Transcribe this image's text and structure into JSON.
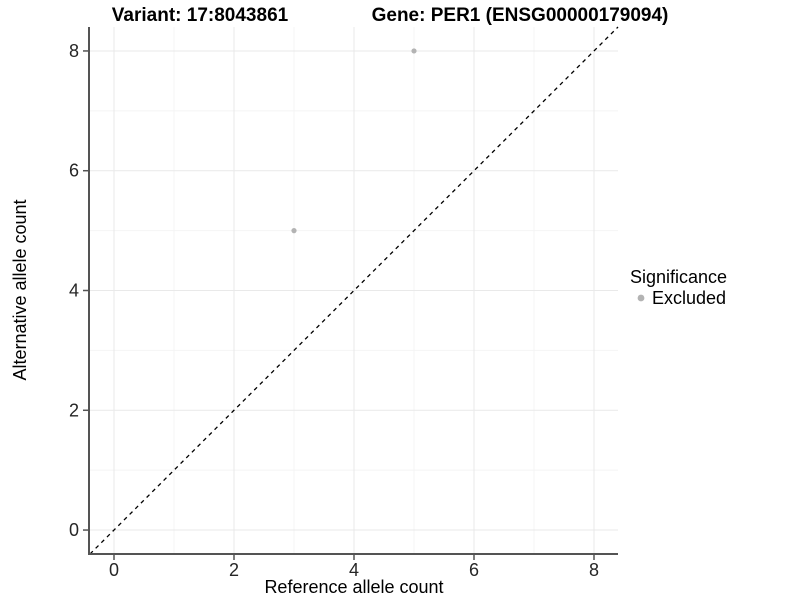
{
  "chart_data": {
    "type": "scatter",
    "titles": {
      "left": "Variant: 17:8043861",
      "right": "Gene: PER1 (ENSG00000179094)"
    },
    "xlabel": "Reference allele count",
    "ylabel": "Alternative allele count",
    "xlim": [
      -0.4,
      8.4
    ],
    "ylim": [
      -0.4,
      8.4
    ],
    "x_ticks": [
      0,
      2,
      4,
      6,
      8
    ],
    "y_ticks": [
      0,
      2,
      4,
      6,
      8
    ],
    "x_minor_ticks": [
      1,
      3,
      5,
      7
    ],
    "y_minor_ticks": [
      1,
      3,
      5,
      7
    ],
    "series": [
      {
        "name": "Excluded",
        "color": "#b3b3b3",
        "point_radius": 2.6,
        "points": [
          [
            3,
            5
          ],
          [
            5,
            8
          ]
        ]
      }
    ],
    "reference_line": {
      "kind": "identity (y = x)",
      "color": "#000000",
      "dash": "4 4",
      "width": 1.3
    },
    "legend": {
      "title": "Significance",
      "position": "right",
      "items": [
        {
          "label": "Excluded",
          "color": "#b3b3b3"
        }
      ]
    },
    "grid": {
      "major_color": "#e9e9e9",
      "minor_color": "#f4f4f4"
    },
    "axis_color": "#545454",
    "background": "#ffffff"
  }
}
